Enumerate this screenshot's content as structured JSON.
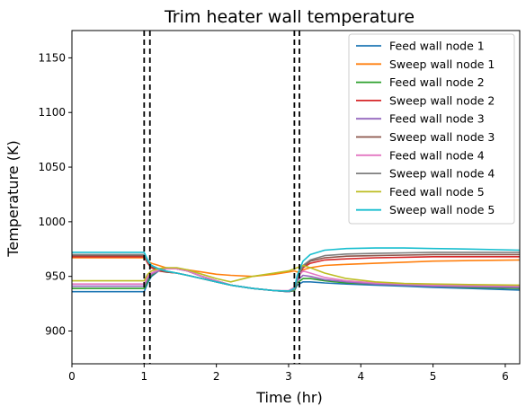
{
  "chart_data": {
    "type": "line",
    "title": "Trim heater wall temperature",
    "xlabel": "Time (hr)",
    "ylabel": "Temperature (K)",
    "xlim": [
      0,
      6.2
    ],
    "ylim": [
      870,
      1175
    ],
    "xticks": [
      0,
      1,
      2,
      3,
      4,
      5,
      6
    ],
    "yticks": [
      900,
      950,
      1000,
      1050,
      1100,
      1150
    ],
    "grid": false,
    "legend_position": "top-right",
    "vlines": [
      1.0,
      1.08,
      3.08,
      3.15
    ],
    "x": [
      0,
      0.5,
      1.0,
      1.05,
      1.1,
      1.2,
      1.3,
      1.45,
      1.6,
      1.8,
      2.0,
      2.2,
      2.5,
      2.8,
      3.0,
      3.08,
      3.12,
      3.2,
      3.3,
      3.5,
      3.8,
      4.2,
      4.6,
      5.0,
      5.5,
      6.2
    ],
    "series": [
      {
        "name": "Feed wall node 1",
        "color": "#1f77b4",
        "values": [
          936,
          936,
          936,
          944,
          950,
          955,
          957,
          957,
          955,
          950,
          946,
          942,
          939,
          937,
          936,
          937,
          942,
          945,
          945,
          944,
          943,
          942,
          941,
          940,
          939,
          937.5
        ]
      },
      {
        "name": "Sweep wall node 1",
        "color": "#ff7f0e",
        "values": [
          967,
          967,
          967,
          964,
          962,
          960,
          958,
          957,
          956,
          954,
          952,
          951,
          950,
          952,
          954,
          955,
          954,
          956,
          958,
          960,
          961,
          962,
          963,
          964,
          964.5,
          965
        ]
      },
      {
        "name": "Feed wall node 2",
        "color": "#2ca02c",
        "values": [
          939,
          939,
          939,
          946,
          951,
          955,
          957,
          957,
          955,
          950,
          946,
          942,
          939,
          937,
          936,
          937,
          944,
          948,
          948,
          946,
          944,
          943,
          942,
          941,
          940,
          939
        ]
      },
      {
        "name": "Sweep wall node 2",
        "color": "#d62728",
        "values": [
          968,
          968,
          968,
          962,
          958,
          955,
          954,
          953,
          951,
          948,
          945,
          942,
          939,
          937,
          936.5,
          938,
          947,
          958,
          962,
          965,
          966,
          967,
          967.5,
          968,
          968,
          968
        ]
      },
      {
        "name": "Feed wall node 3",
        "color": "#9467bd",
        "values": [
          941,
          941,
          941,
          948,
          952,
          955,
          957,
          957,
          955,
          950,
          946,
          942,
          939,
          937,
          936,
          938,
          946,
          951,
          950,
          947,
          945,
          943,
          942,
          941,
          940.5,
          940
        ]
      },
      {
        "name": "Sweep wall node 3",
        "color": "#8c564b",
        "values": [
          969,
          969,
          969,
          963,
          959,
          956,
          954,
          953,
          951,
          948,
          945,
          942,
          939,
          937,
          936.5,
          938,
          948,
          959,
          964,
          967,
          968.5,
          969,
          969.5,
          970,
          970,
          970
        ]
      },
      {
        "name": "Feed wall node 4",
        "color": "#e377c2",
        "values": [
          943,
          943,
          943,
          950,
          953,
          956,
          957,
          957,
          955,
          950,
          946,
          942,
          939,
          937,
          937,
          940,
          949,
          955,
          953,
          949,
          946,
          944,
          943,
          942,
          941.5,
          941
        ]
      },
      {
        "name": "Sweep wall node 4",
        "color": "#7f7f7f",
        "values": [
          970,
          970,
          970,
          964,
          960,
          957,
          955,
          953,
          951,
          948,
          945,
          942,
          939,
          937,
          936.5,
          938,
          949,
          960,
          965,
          969,
          970.5,
          971,
          971.5,
          972,
          972,
          972
        ]
      },
      {
        "name": "Feed wall node 5",
        "color": "#bcbd22",
        "values": [
          946,
          946,
          946,
          952,
          955,
          957,
          958,
          958,
          956,
          952,
          948,
          945,
          950,
          953,
          955,
          957,
          958,
          960,
          958,
          953,
          948,
          945,
          943.5,
          943,
          942.5,
          942
        ]
      },
      {
        "name": "Sweep wall node 5",
        "color": "#17becf",
        "values": [
          972,
          972,
          972,
          965,
          960,
          957,
          955,
          953,
          951,
          948,
          945,
          942,
          939,
          937,
          936.5,
          939,
          951,
          964,
          970,
          974,
          975.5,
          976,
          976,
          975.5,
          975,
          974
        ]
      }
    ]
  }
}
